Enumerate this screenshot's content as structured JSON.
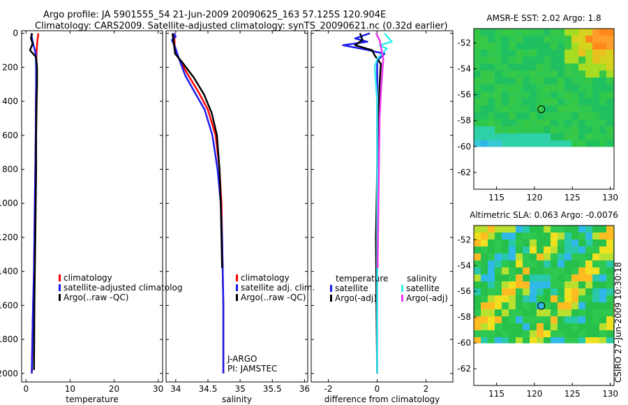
{
  "header": {
    "line1": "Argo profile: JA 5901555_54 21-Jun-2009 20090625_163 57.125S 120.904E",
    "line2": "Climatology: CARS2009. Satellite-adjusted climatology: synTS_20090621.nc (0.32d earlier)"
  },
  "credit": "CSIRO 27-Jun-2009 10:30:18",
  "colors": {
    "red": "#ff0000",
    "blue": "#1a1aee",
    "black": "#000000",
    "cyan": "#33eeee",
    "magenta": "#ee33ee"
  },
  "chart_data": [
    {
      "type": "line",
      "name": "temperature",
      "xlabel": "temperature",
      "ylabel": "",
      "xlim": [
        -1,
        31
      ],
      "ylim": [
        2050,
        -15
      ],
      "xticks": [
        "0",
        "10",
        "20",
        "30"
      ],
      "yticks": [
        "0",
        "200",
        "400",
        "600",
        "800",
        "1000",
        "1200",
        "1400",
        "1600",
        "1800",
        "2000"
      ],
      "series": [
        {
          "name": "climatology",
          "color": "red",
          "x": [
            2.8,
            2.6,
            2.4,
            2.3,
            2.3,
            2.25,
            2.2,
            2.1,
            2.0,
            1.9,
            1.8,
            1.6,
            1.3
          ],
          "y": [
            0,
            40,
            100,
            200,
            300,
            400,
            600,
            800,
            1000,
            1200,
            1400,
            1600,
            2000
          ]
        },
        {
          "name": "satellite-adjusted climatology",
          "color": "blue",
          "x": [
            1.2,
            1.3,
            1.5,
            2.2,
            2.3,
            2.3,
            2.25,
            2.2,
            2.1,
            2.0,
            1.9,
            1.8,
            1.6,
            1.3
          ],
          "y": [
            0,
            20,
            50,
            120,
            200,
            300,
            400,
            600,
            800,
            1000,
            1200,
            1400,
            1600,
            2000
          ]
        },
        {
          "name": "Argo(..raw -QC)",
          "color": "black",
          "x": [
            1.4,
            1.1,
            1.5,
            0.9,
            2.3,
            2.5,
            2.5,
            2.4,
            2.3,
            2.3,
            2.2,
            2.1,
            2.0,
            1.9,
            1.8
          ],
          "y": [
            0,
            30,
            60,
            100,
            140,
            200,
            300,
            400,
            600,
            800,
            1000,
            1200,
            1400,
            1600,
            1980
          ]
        }
      ],
      "legend": [
        "climatology",
        "satellite-adjusted climatolog",
        "Argo(..raw -QC)"
      ]
    },
    {
      "type": "line",
      "name": "salinity",
      "xlabel": "salinity",
      "ylabel": "",
      "xlim": [
        33.85,
        36.05
      ],
      "ylim": [
        2050,
        -15
      ],
      "xticks": [
        "34",
        "34.5",
        "35",
        "35.5",
        "36"
      ],
      "series": [
        {
          "name": "climatology",
          "color": "red",
          "x": [
            33.98,
            33.98,
            33.99,
            34.05,
            34.2,
            34.36,
            34.5,
            34.62,
            34.68,
            34.71,
            34.72,
            34.73,
            34.74,
            34.74
          ],
          "y": [
            0,
            50,
            100,
            150,
            250,
            350,
            450,
            600,
            800,
            1000,
            1200,
            1400,
            1600,
            2000
          ]
        },
        {
          "name": "satellite adj. clim.",
          "color": "blue",
          "x": [
            33.97,
            34.0,
            33.94,
            33.99,
            34.05,
            34.15,
            34.3,
            34.45,
            34.57,
            34.65,
            34.7,
            34.72,
            34.73,
            34.74,
            34.74
          ],
          "y": [
            0,
            20,
            40,
            80,
            150,
            250,
            350,
            450,
            600,
            800,
            1000,
            1200,
            1400,
            1600,
            2000
          ]
        },
        {
          "name": "Argo(..raw -QC)",
          "color": "black",
          "x": [
            33.95,
            33.97,
            33.99,
            34.1,
            34.28,
            34.44,
            34.56,
            34.64,
            34.68,
            34.7,
            34.71,
            34.72
          ],
          "y": [
            0,
            60,
            120,
            170,
            260,
            360,
            470,
            600,
            800,
            1000,
            1200,
            1380
          ]
        }
      ],
      "legend": [
        "climatology",
        "satellite adj. clim.",
        "Argo(..raw -QC)"
      ],
      "annotations": [
        "J-ARGO",
        "PI: JAMSTEC"
      ]
    },
    {
      "type": "line",
      "name": "difference",
      "xlabel": "difference from climatology",
      "ylabel": "",
      "xlim": [
        -2.7,
        3.1
      ],
      "ylim": [
        2050,
        -15
      ],
      "xticks": [
        "-2",
        "0",
        "2"
      ],
      "series": [
        {
          "name": "temperature satellite",
          "color": "blue",
          "x": [
            -0.3,
            -0.9,
            -0.4,
            -1.4,
            -0.5,
            0.3,
            0.0,
            0.0,
            0.0,
            0.0,
            0.0,
            0.0
          ],
          "y": [
            0,
            30,
            50,
            70,
            95,
            120,
            160,
            300,
            600,
            1000,
            1500,
            2000
          ]
        },
        {
          "name": "temperature Argo(-adj)",
          "color": "black",
          "x": [
            -0.7,
            -0.6,
            -0.9,
            -0.2,
            -0.1,
            0.15,
            0.1,
            0.05,
            0.0,
            -0.05,
            -0.03,
            0.0
          ],
          "y": [
            0,
            40,
            70,
            100,
            130,
            180,
            300,
            500,
            800,
            1200,
            1600,
            2000
          ]
        },
        {
          "name": "salinity satellite",
          "color": "cyan",
          "x": [
            0.3,
            0.6,
            0.1,
            0.4,
            0.0,
            -0.1,
            0.0,
            0.0,
            0.0,
            0.0
          ],
          "y": [
            0,
            50,
            70,
            90,
            150,
            200,
            400,
            700,
            1000,
            2000
          ]
        },
        {
          "name": "salinity Argo(-adj)",
          "color": "magenta",
          "x": [
            -0.05,
            0.1,
            0.25,
            0.2,
            0.15,
            0.1,
            0.08,
            0.05,
            0.02
          ],
          "y": [
            0,
            40,
            150,
            250,
            350,
            500,
            700,
            1000,
            1380
          ]
        }
      ],
      "legend_headers": [
        "temperature",
        "salinity"
      ],
      "legend": [
        "satellite",
        "Argo(-adj)",
        "satellite",
        "Argo(-adj)"
      ]
    },
    {
      "type": "heatmap",
      "name": "sst-map",
      "title": "AMSR-E SST: 2.02 Argo: 1.8",
      "xlim": [
        112,
        130.5
      ],
      "ylim": [
        -63.3,
        -50.9
      ],
      "xticks": [
        "115",
        "120",
        "125",
        "130"
      ],
      "yticks": [
        "-52",
        "-54",
        "-56",
        "-58",
        "-60",
        "-62"
      ],
      "data_lat_range": [
        -60,
        -50.9
      ],
      "argo_position": {
        "lon": 120.904,
        "lat": -57.125
      }
    },
    {
      "type": "heatmap",
      "name": "sla-map",
      "title": "Altimetric SLA: 0.063 Argo: -0.0076",
      "xlim": [
        112,
        130.5
      ],
      "ylim": [
        -63.3,
        -50.9
      ],
      "xticks": [
        "115",
        "120",
        "125",
        "130"
      ],
      "yticks": [
        "-52",
        "-54",
        "-56",
        "-58",
        "-60",
        "-62"
      ],
      "data_lat_range": [
        -60,
        -50.9
      ],
      "argo_position": {
        "lon": 120.904,
        "lat": -57.125
      }
    }
  ]
}
